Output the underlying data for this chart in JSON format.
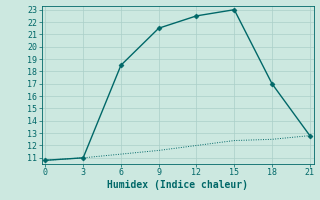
{
  "xlabel": "Humidex (Indice chaleur)",
  "background_color": "#cce8e0",
  "grid_color": "#aacfc8",
  "line_color": "#006868",
  "x_line1": [
    0,
    3,
    6,
    9,
    12,
    15,
    18,
    21
  ],
  "y_line1": [
    10.8,
    11.0,
    18.5,
    21.5,
    22.5,
    23.0,
    17.0,
    12.8
  ],
  "x_line2": [
    0,
    3,
    6,
    9,
    12,
    15,
    18,
    21
  ],
  "y_line2": [
    10.8,
    11.0,
    11.3,
    11.6,
    12.0,
    12.4,
    12.5,
    12.8
  ],
  "xlim": [
    -0.3,
    21.3
  ],
  "ylim": [
    10.5,
    23.3
  ],
  "yticks": [
    11,
    12,
    13,
    14,
    15,
    16,
    17,
    18,
    19,
    20,
    21,
    22,
    23
  ],
  "xticks": [
    0,
    3,
    6,
    9,
    12,
    15,
    18,
    21
  ],
  "tick_fontsize": 6,
  "xlabel_fontsize": 7
}
